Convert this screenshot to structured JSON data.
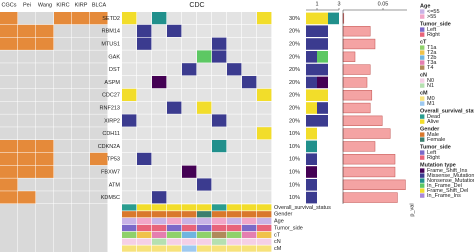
{
  "chart_data": {
    "type": "oncoprint",
    "title": "CDC",
    "heat_columns": [
      "CGCs",
      "Pei",
      "Wang",
      "KIRC",
      "KIRP",
      "BLCA"
    ],
    "heat_colors": [
      "#d9d9d9",
      "#e58a3a"
    ],
    "samples": 10,
    "mutation_types": [
      {
        "name": "Frame_Shift_Ins",
        "color": "#440154"
      },
      {
        "name": "Missense_Mutation",
        "color": "#3b3b8f"
      },
      {
        "name": "Nonsense_Mutation",
        "color": "#21908c"
      },
      {
        "name": "In_Frame_Del",
        "color": "#5dc863"
      },
      {
        "name": "Frame_Shift_Del",
        "color": "#f2dd2a"
      },
      {
        "name": "In_Frame_Ins",
        "color": "#a988d8"
      }
    ],
    "mutation_legend_title": "Mutation type",
    "count_xlim": [
      0,
      3
    ],
    "count_xticks": [
      1,
      3
    ],
    "pval_xlim": [
      0,
      0.08
    ],
    "pval_xticks": [
      0.05
    ],
    "pval_label": "p_val",
    "pval_color": "#f4a3a3",
    "genes": [
      {
        "name": "SETD2",
        "freq": "30%",
        "heat": [
          1,
          0,
          0,
          1,
          1,
          1
        ],
        "cells": [
          [
            0,
            4
          ],
          [
            2,
            2
          ],
          [
            9,
            4
          ]
        ],
        "counts": [
          {
            "type": 4,
            "n": 2
          },
          {
            "type": 2,
            "n": 1
          }
        ],
        "pval": 0.001
      },
      {
        "name": "RBM14",
        "freq": "20%",
        "heat": [
          1,
          1,
          1,
          0,
          0,
          0
        ],
        "cells": [
          [
            1,
            1
          ],
          [
            3,
            1
          ]
        ],
        "counts": [
          {
            "type": 1,
            "n": 2
          }
        ],
        "pval": 0.034
      },
      {
        "name": "MTUS1",
        "freq": "20%",
        "heat": [
          1,
          1,
          1,
          0,
          0,
          0
        ],
        "cells": [
          [
            1,
            1
          ],
          [
            6,
            1
          ]
        ],
        "counts": [
          {
            "type": 1,
            "n": 2
          }
        ],
        "pval": 0.04
      },
      {
        "name": "GAK",
        "freq": "20%",
        "heat": [
          0,
          0,
          0,
          0,
          0,
          0
        ],
        "cells": [
          [
            5,
            3
          ],
          [
            6,
            1
          ]
        ],
        "counts": [
          {
            "type": 1,
            "n": 1
          },
          {
            "type": 3,
            "n": 1
          }
        ],
        "pval": 0.015
      },
      {
        "name": "DST",
        "freq": "20%",
        "heat": [
          0,
          0,
          0,
          0,
          0,
          0
        ],
        "cells": [
          [
            4,
            1
          ],
          [
            7,
            1
          ]
        ],
        "counts": [
          {
            "type": 1,
            "n": 2
          }
        ],
        "pval": 0.034
      },
      {
        "name": "ASPM",
        "freq": "20%",
        "heat": [
          0,
          0,
          0,
          0,
          0,
          0
        ],
        "cells": [
          [
            2,
            0
          ],
          [
            8,
            1
          ]
        ],
        "counts": [
          {
            "type": 1,
            "n": 1
          },
          {
            "type": 0,
            "n": 1
          }
        ],
        "pval": 0.03
      },
      {
        "name": "CDC27",
        "freq": "20%",
        "heat": [
          0,
          0,
          0,
          0,
          0,
          0
        ],
        "cells": [
          [
            0,
            4
          ],
          [
            9,
            4
          ]
        ],
        "counts": [
          {
            "type": 4,
            "n": 2
          }
        ],
        "pval": 0.036
      },
      {
        "name": "RNF213",
        "freq": "20%",
        "heat": [
          0,
          0,
          0,
          0,
          0,
          0
        ],
        "cells": [
          [
            3,
            1
          ],
          [
            5,
            4
          ]
        ],
        "counts": [
          {
            "type": 4,
            "n": 1
          },
          {
            "type": 1,
            "n": 1
          }
        ],
        "pval": 0.034
      },
      {
        "name": "XIRP2",
        "freq": "20%",
        "heat": [
          0,
          0,
          0,
          0,
          0,
          0
        ],
        "cells": [
          [
            0,
            1
          ],
          [
            6,
            1
          ]
        ],
        "counts": [
          {
            "type": 1,
            "n": 2
          }
        ],
        "pval": 0.049
      },
      {
        "name": "CDH11",
        "freq": "10%",
        "heat": [
          0,
          0,
          0,
          0,
          0,
          0
        ],
        "cells": [
          [
            9,
            4
          ]
        ],
        "counts": [
          {
            "type": 4,
            "n": 1
          }
        ],
        "pval": 0.059
      },
      {
        "name": "CDKN2A",
        "freq": "10%",
        "heat": [
          1,
          1,
          1,
          0,
          0,
          0
        ],
        "cells": [
          [
            6,
            2
          ]
        ],
        "counts": [
          {
            "type": 2,
            "n": 1
          }
        ],
        "pval": 0.04
      },
      {
        "name": "TP53",
        "freq": "10%",
        "heat": [
          1,
          1,
          1,
          0,
          0,
          1
        ],
        "cells": [
          [
            1,
            1
          ]
        ],
        "counts": [
          {
            "type": 1,
            "n": 1
          }
        ],
        "pval": 0.065
      },
      {
        "name": "FBXW7",
        "freq": "10%",
        "heat": [
          1,
          1,
          1,
          0,
          0,
          0
        ],
        "cells": [
          [
            4,
            0
          ]
        ],
        "counts": [
          {
            "type": 0,
            "n": 1
          }
        ],
        "pval": 0.065
      },
      {
        "name": "ATM",
        "freq": "10%",
        "heat": [
          1,
          0,
          0,
          0,
          0,
          0
        ],
        "cells": [
          [
            5,
            1
          ]
        ],
        "counts": [
          {
            "type": 1,
            "n": 1
          }
        ],
        "pval": 0.078
      },
      {
        "name": "KDM5C",
        "freq": "10%",
        "heat": [
          1,
          1,
          0,
          0,
          0,
          0
        ],
        "cells": [
          [
            2,
            1
          ]
        ],
        "counts": [
          {
            "type": 1,
            "n": 1
          }
        ],
        "pval": 0.068
      }
    ],
    "legends": [
      {
        "title": "Age",
        "levels": [
          {
            "name": "<=55",
            "color": "#c9b3e6"
          },
          {
            "name": ">55",
            "color": "#f2a6c8"
          }
        ]
      },
      {
        "title": "Tumor_side",
        "levels": [
          {
            "name": "Left",
            "color": "#7b68c8"
          },
          {
            "name": "Right",
            "color": "#e8637a"
          }
        ]
      },
      {
        "title": "cT",
        "levels": [
          {
            "name": "T1a",
            "color": "#8fd16a"
          },
          {
            "name": "T2a",
            "color": "#f0c24a"
          },
          {
            "name": "T2b",
            "color": "#6fb5e0"
          },
          {
            "name": "T3a",
            "color": "#e57fb0"
          },
          {
            "name": "T4",
            "color": "#b08a5a"
          }
        ]
      },
      {
        "title": "cN",
        "levels": [
          {
            "name": "N0",
            "color": "#f5d0e6"
          },
          {
            "name": "N1",
            "color": "#b5e0b0"
          }
        ]
      },
      {
        "title": "cM",
        "levels": [
          {
            "name": "M0",
            "color": "#f7e27a"
          },
          {
            "name": "M1",
            "color": "#9ec9f0"
          }
        ]
      },
      {
        "title": "Overall_survival_status",
        "levels": [
          {
            "name": "Dead",
            "color": "#2a9d8f"
          },
          {
            "name": "Alive",
            "color": "#f2dd2a"
          }
        ]
      },
      {
        "title": "Gender",
        "levels": [
          {
            "name": "Male",
            "color": "#d9782b"
          },
          {
            "name": "Female",
            "color": "#3b7f6e"
          }
        ]
      },
      {
        "title": "Tumor_side",
        "levels": [
          {
            "name": "Left",
            "color": "#7b68c8"
          },
          {
            "name": "Right",
            "color": "#e8637a"
          }
        ]
      }
    ],
    "tracks": [
      {
        "name": "Overall_survival_status",
        "values": [
          "Dead",
          "Alive",
          "Alive",
          "Alive",
          "Alive",
          "Alive",
          "Dead",
          "Alive",
          "Alive",
          "Alive"
        ]
      },
      {
        "name": "Gender",
        "values": [
          "Male",
          "Male",
          "Male",
          "Male",
          "Male",
          "Female",
          "Male",
          "Male",
          "Male",
          "Male"
        ]
      },
      {
        "name": "Age",
        "values": [
          "<=55",
          ">55",
          "<=55",
          ">55",
          "<=55",
          "<=55",
          ">55",
          "<=55",
          ">55",
          "<=55"
        ]
      },
      {
        "name": "Tumor_side",
        "values": [
          "Left",
          "Right",
          "Right",
          "Left",
          "Right",
          "Left",
          "Right",
          "Right",
          "Left",
          "Right"
        ]
      },
      {
        "name": "cT",
        "values": [
          "T1a",
          "T2a",
          "T3a",
          "T1a",
          "T2b",
          "T1a",
          "T4",
          "T1a",
          "T3a",
          "T2a"
        ]
      },
      {
        "name": "cN",
        "values": [
          "N0",
          "N0",
          "N1",
          "N0",
          "N0",
          "N0",
          "N1",
          "N0",
          "N0",
          "N0"
        ]
      },
      {
        "name": "cM",
        "values": [
          "M0",
          "M0",
          "M0",
          "M0",
          "M1",
          "M0",
          "M0",
          "M0",
          "M0",
          "M0"
        ]
      }
    ]
  }
}
